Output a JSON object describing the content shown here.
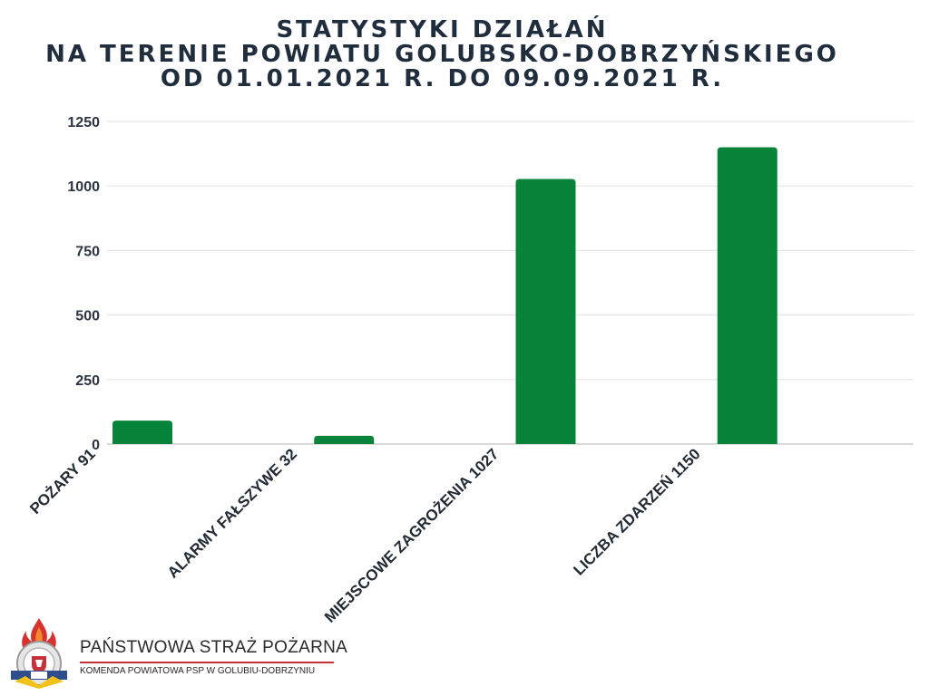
{
  "title_lines": [
    "STATYSTYKI DZIAŁAŃ",
    "NA TERENIE POWIATU GOLUBSKO-DOBRZYŃSKIEGO",
    "OD 01.01.2021 R. DO 09.09.2021 R."
  ],
  "colors": {
    "bar": "#08843a",
    "grid": "#e3e3e3",
    "axis": "#b5b5b5",
    "text": "#1f2d3d"
  },
  "chart_data": {
    "type": "bar",
    "categories": [
      "POŻARY 91",
      "ALARMY FAŁSZYWE 32",
      "MIEJSCOWE ZAGROŻENIA 1027",
      "LICZBA ZDARZEŃ 1150"
    ],
    "values": [
      91,
      32,
      1027,
      1150
    ],
    "yticks": [
      0,
      250,
      500,
      750,
      1000,
      1250
    ],
    "ylim": [
      0,
      1250
    ],
    "grid": true,
    "legend": "none"
  },
  "logo": {
    "org_name": "PAŃSTWOWA STRAŻ POŻARNA",
    "org_sub": "KOMENDA POWIATOWA PSP W GOLUBIU-DOBRZYNIU",
    "icon": "fire-service-emblem-icon"
  }
}
